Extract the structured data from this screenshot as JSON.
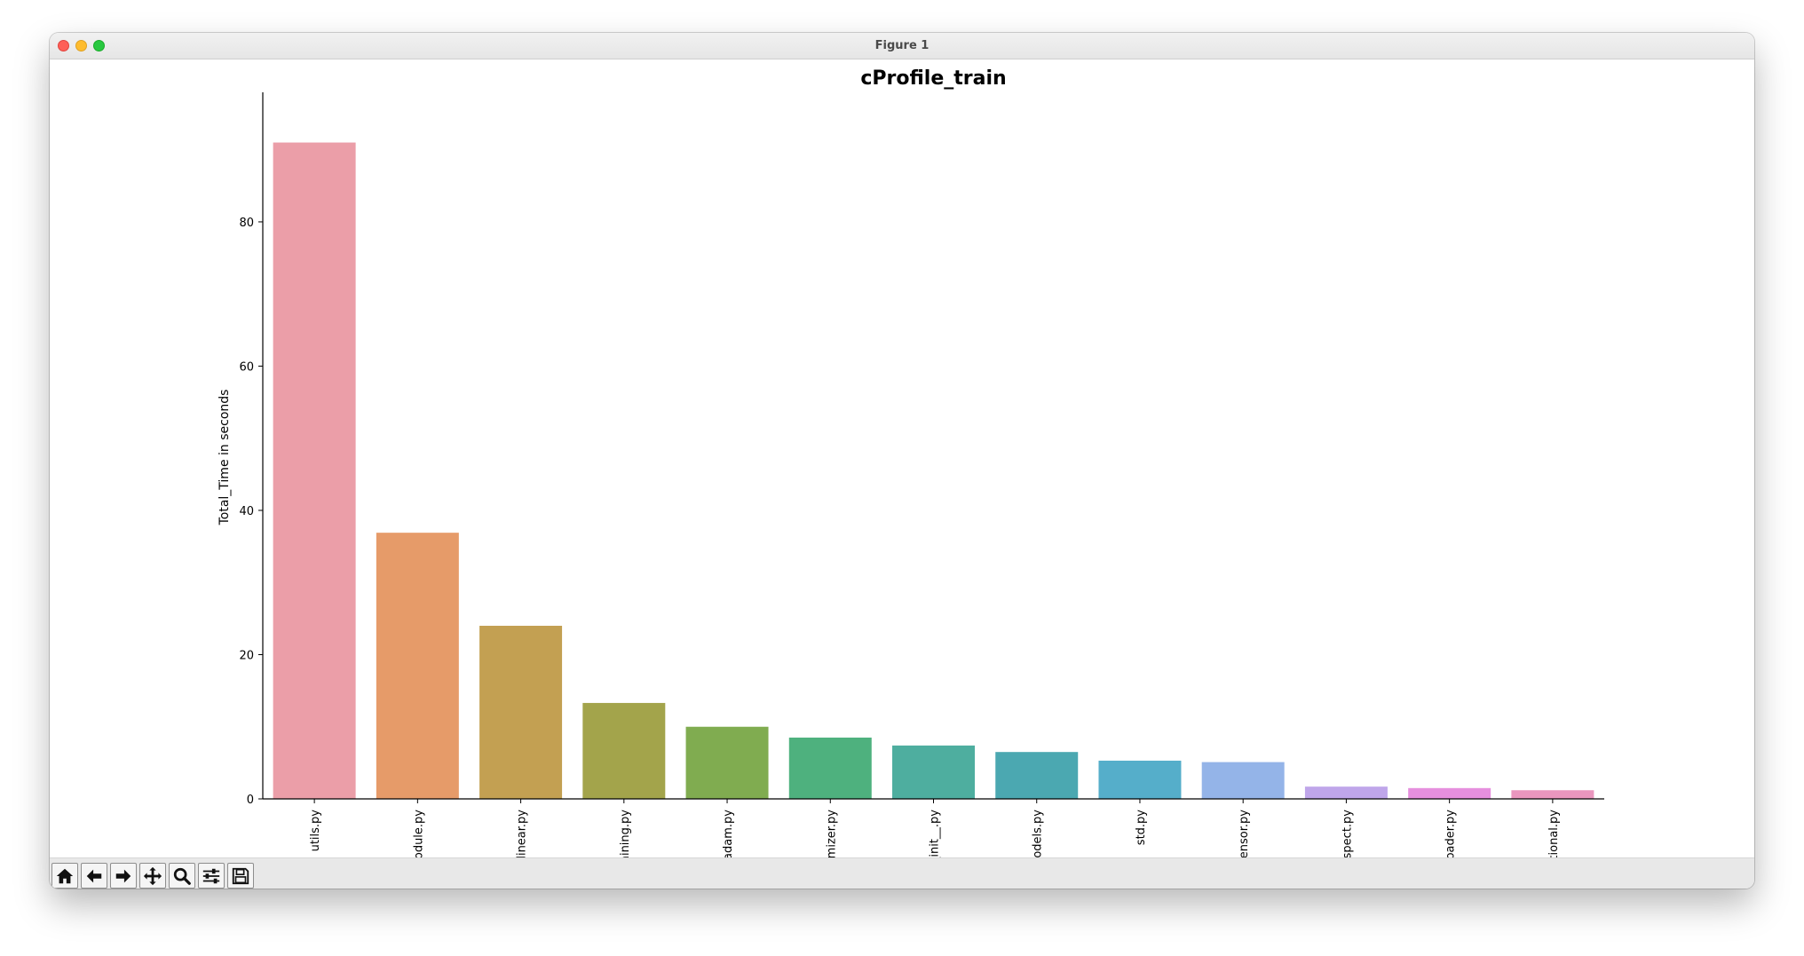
{
  "window": {
    "title": "Figure 1"
  },
  "toolbar": {
    "buttons": [
      {
        "name": "home-button",
        "icon": "home-icon"
      },
      {
        "name": "back-button",
        "icon": "arrow-left-icon"
      },
      {
        "name": "forward-button",
        "icon": "arrow-right-icon"
      },
      {
        "name": "pan-button",
        "icon": "move-icon"
      },
      {
        "name": "zoom-button",
        "icon": "magnifier-icon"
      },
      {
        "name": "configure-subplots-button",
        "icon": "sliders-icon"
      },
      {
        "name": "save-button",
        "icon": "floppy-disk-icon"
      }
    ]
  },
  "chart_data": {
    "type": "bar",
    "title": "cProfile_train",
    "xlabel": "",
    "ylabel": "Total_Time in seconds",
    "categories": [
      "utils.py",
      "module.py",
      "linear.py",
      "training.py",
      "adam.py",
      "optimizer.py",
      "__init__.py",
      "models.py",
      "std.py",
      "_tensor.py",
      "inspect.py",
      "dataloader.py",
      "functional.py"
    ],
    "values": [
      91.0,
      36.9,
      24.0,
      13.3,
      10.0,
      8.5,
      7.4,
      6.5,
      5.3,
      5.1,
      1.7,
      1.5,
      1.2
    ],
    "colors": [
      "#eb9ea8",
      "#e69b69",
      "#c3a052",
      "#a3a44b",
      "#80ac50",
      "#4eb17e",
      "#4eae9f",
      "#4ba8b1",
      "#55aeca",
      "#94b4e8",
      "#bfa6ea",
      "#e68fde",
      "#ea96be"
    ],
    "ylim": [
      0,
      95.5
    ],
    "yticks": [
      0,
      20,
      40,
      60,
      80
    ],
    "grid": false,
    "legend": "none"
  }
}
